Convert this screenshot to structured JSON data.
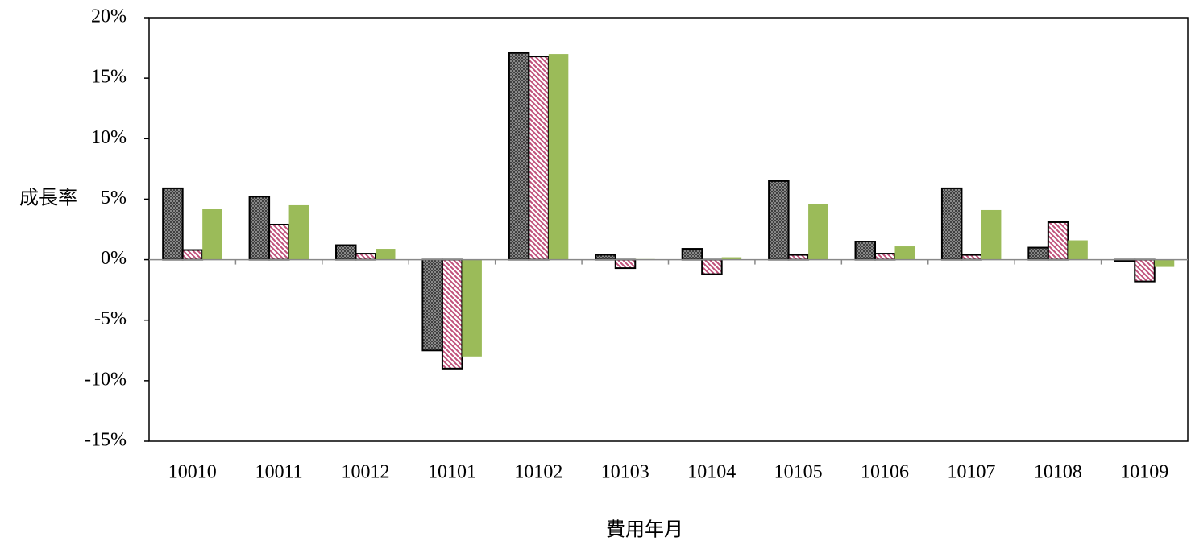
{
  "chart_data": {
    "type": "bar",
    "y_label": "成長率",
    "x_label": "費用年月",
    "categories": [
      "10010",
      "10011",
      "10012",
      "10101",
      "10102",
      "10103",
      "10104",
      "10105",
      "10106",
      "10107",
      "10108",
      "10109"
    ],
    "series": [
      {
        "color": "#404040",
        "pattern": "crosshatch",
        "values": [
          5.9,
          5.2,
          1.2,
          -7.5,
          17.1,
          0.4,
          0.9,
          6.5,
          1.5,
          5.9,
          1.0,
          -0.1
        ]
      },
      {
        "color": "#c0507a",
        "pattern": "diagonal",
        "values": [
          0.8,
          2.9,
          0.5,
          -9.0,
          16.8,
          -0.7,
          -1.2,
          0.4,
          0.5,
          0.4,
          3.1,
          -1.8
        ]
      },
      {
        "color": "#9bbb59",
        "pattern": "solid",
        "values": [
          4.2,
          4.5,
          0.9,
          -8.0,
          17.0,
          0.05,
          0.2,
          4.6,
          1.1,
          4.1,
          1.6,
          -0.6
        ]
      }
    ],
    "ylim": [
      -15,
      20
    ],
    "yticks": [
      {
        "value": -15,
        "label": "-15%"
      },
      {
        "value": -10,
        "label": "-10%"
      },
      {
        "value": -5,
        "label": "-5%"
      },
      {
        "value": 0,
        "label": "0%"
      },
      {
        "value": 5,
        "label": "5%"
      },
      {
        "value": 10,
        "label": "10%"
      },
      {
        "value": 15,
        "label": "15%"
      },
      {
        "value": 20,
        "label": "20%"
      }
    ],
    "grid": false
  }
}
